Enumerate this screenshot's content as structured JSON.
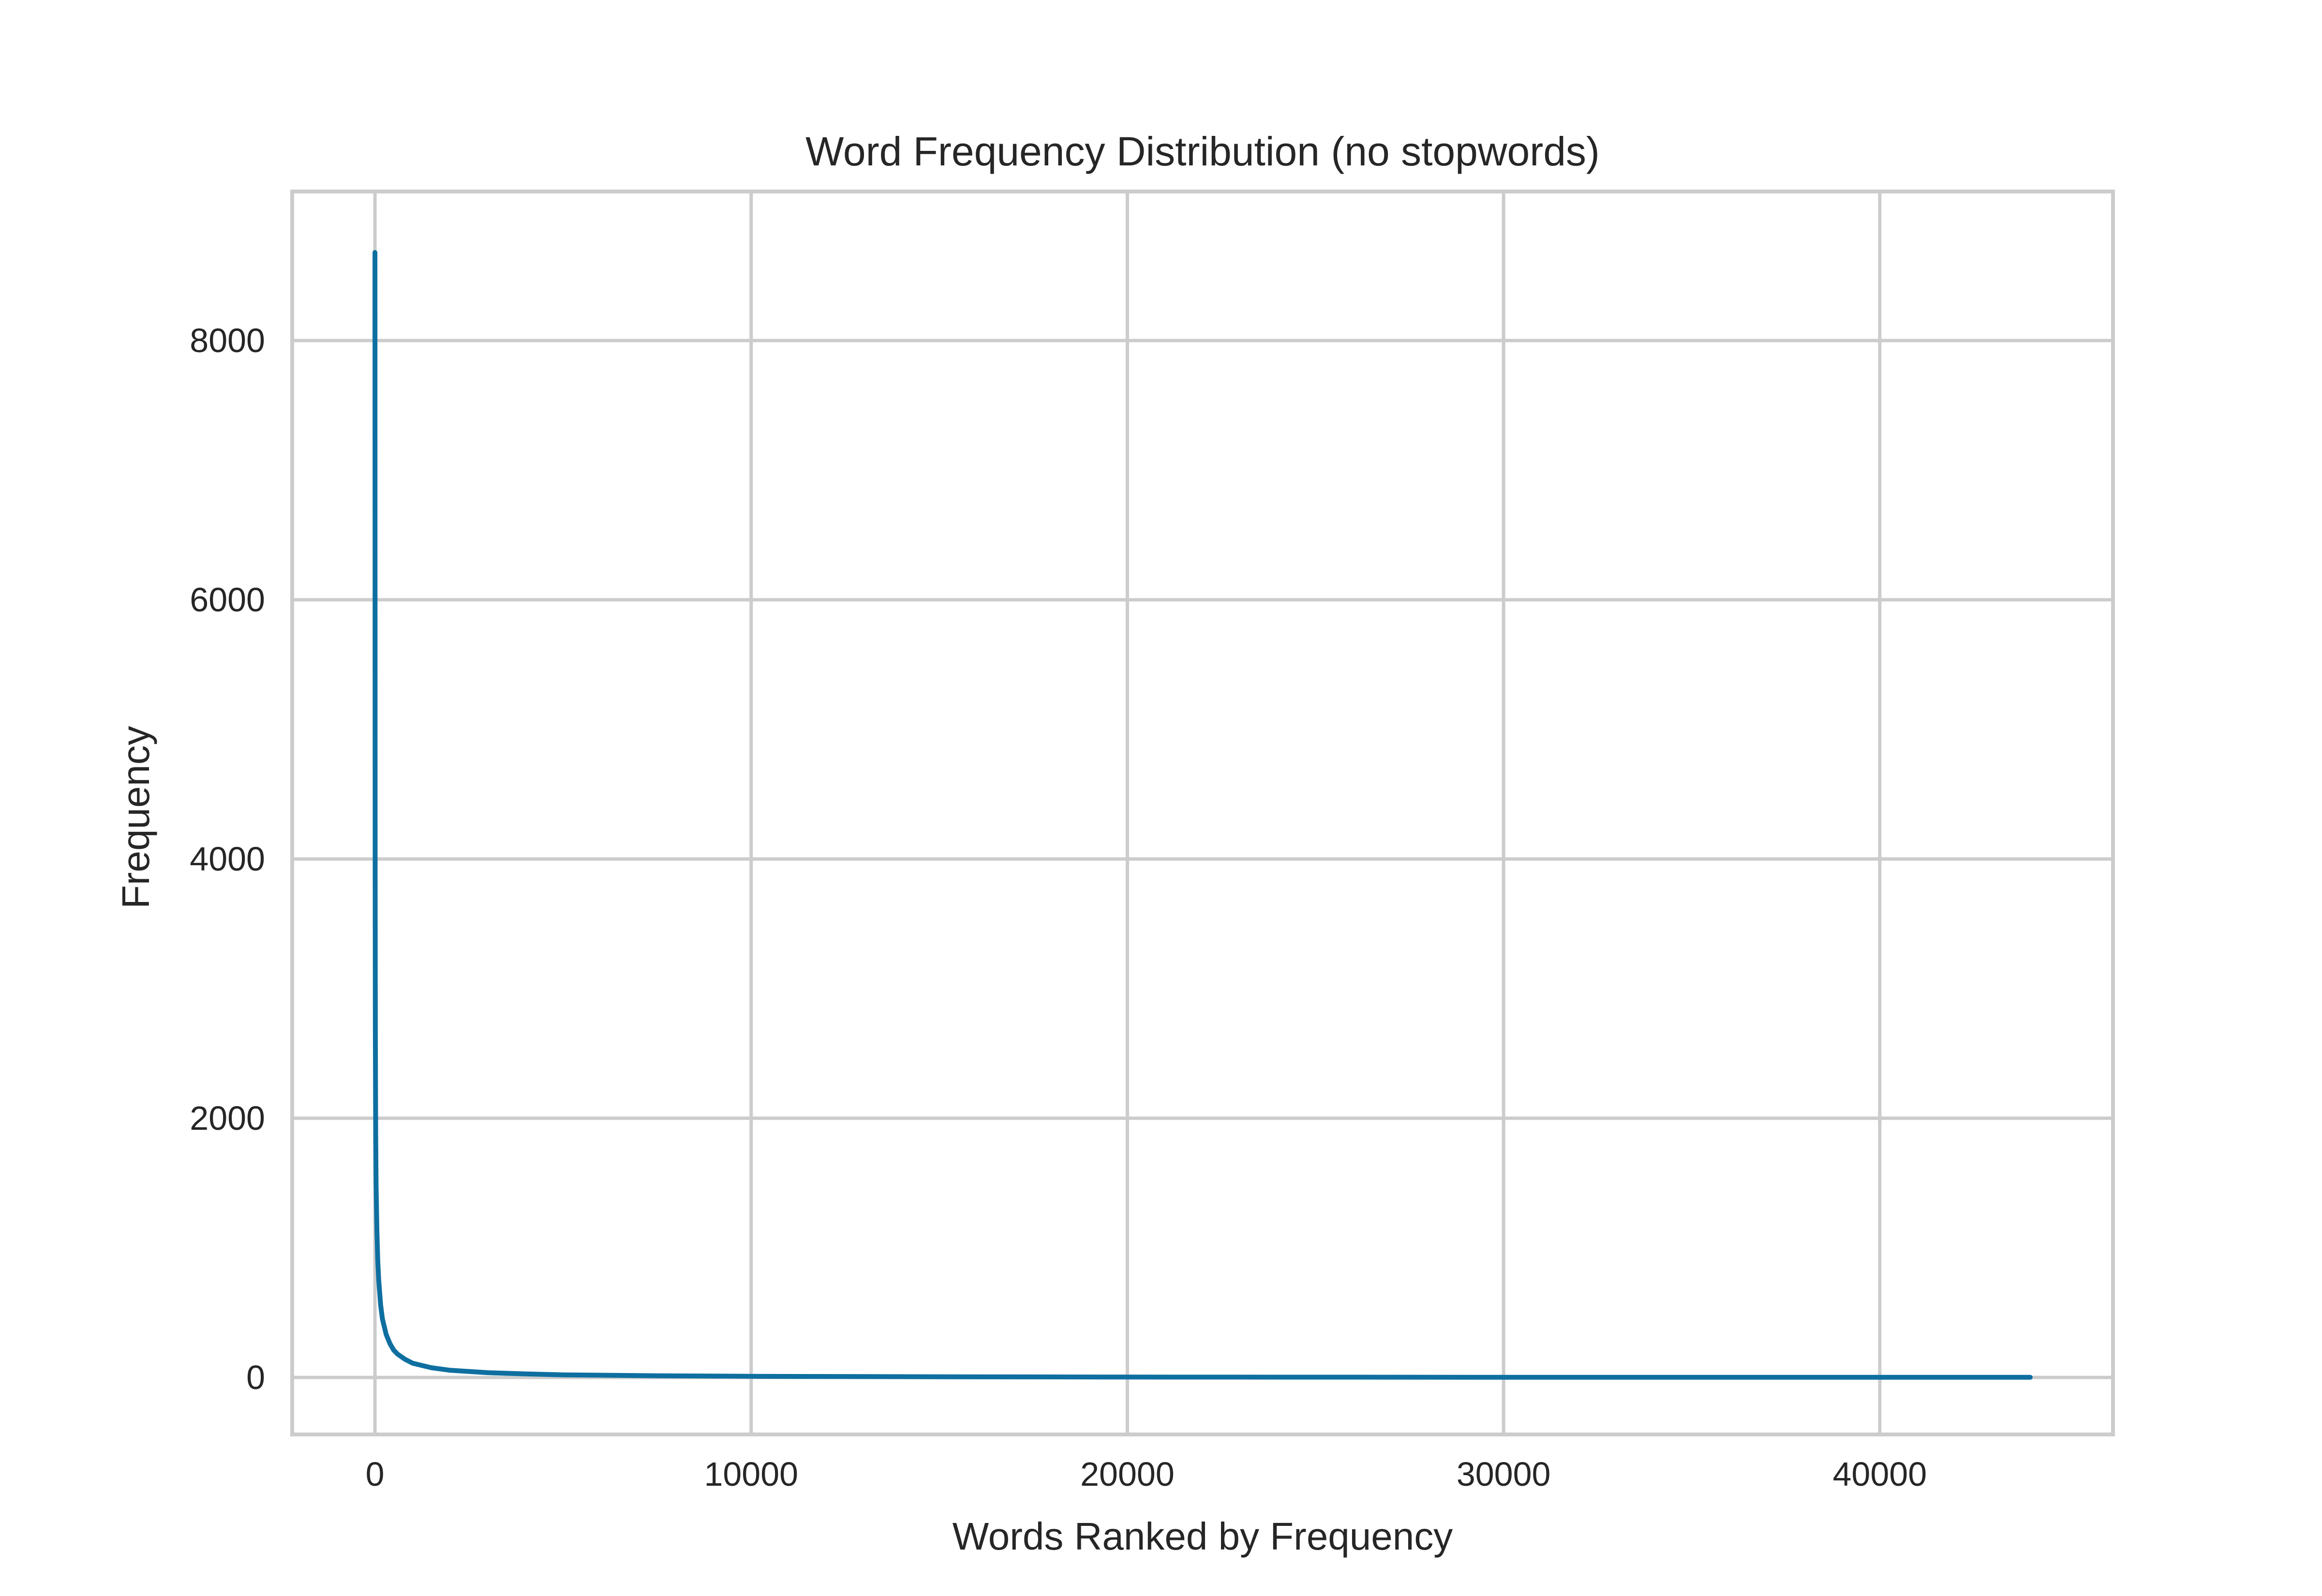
{
  "chart_data": {
    "type": "line",
    "title": "Word Frequency Distribution (no stopwords)",
    "xlabel": "Words Ranked by Frequency",
    "ylabel": "Frequency",
    "xlim": [
      -2200,
      46200
    ],
    "ylim": [
      -440,
      9150
    ],
    "x_ticks": [
      0,
      10000,
      20000,
      30000,
      40000
    ],
    "x_tick_labels": [
      "0",
      "10000",
      "20000",
      "30000",
      "40000"
    ],
    "y_ticks": [
      0,
      2000,
      4000,
      6000,
      8000
    ],
    "y_tick_labels": [
      "0",
      "2000",
      "4000",
      "6000",
      "8000"
    ],
    "grid": true,
    "legend": "none",
    "colors": {
      "line": "#0e6fa0",
      "grid": "#cccccc",
      "text": "#262626",
      "background": "#ffffff"
    },
    "series": [
      {
        "x": [
          0,
          5,
          10,
          20,
          30,
          50,
          75,
          100,
          150,
          200,
          300,
          400,
          500,
          600,
          800,
          1000,
          1500,
          2000,
          3000,
          4000,
          5000,
          7500,
          10000,
          15000,
          20000,
          25000,
          30000,
          35000,
          40000,
          44000
        ],
        "values": [
          8680,
          3900,
          2700,
          1900,
          1500,
          1150,
          900,
          750,
          560,
          450,
          330,
          260,
          210,
          180,
          140,
          110,
          75,
          55,
          37,
          27,
          20,
          13,
          9,
          5,
          3,
          2,
          1,
          1,
          1,
          1
        ]
      }
    ]
  }
}
